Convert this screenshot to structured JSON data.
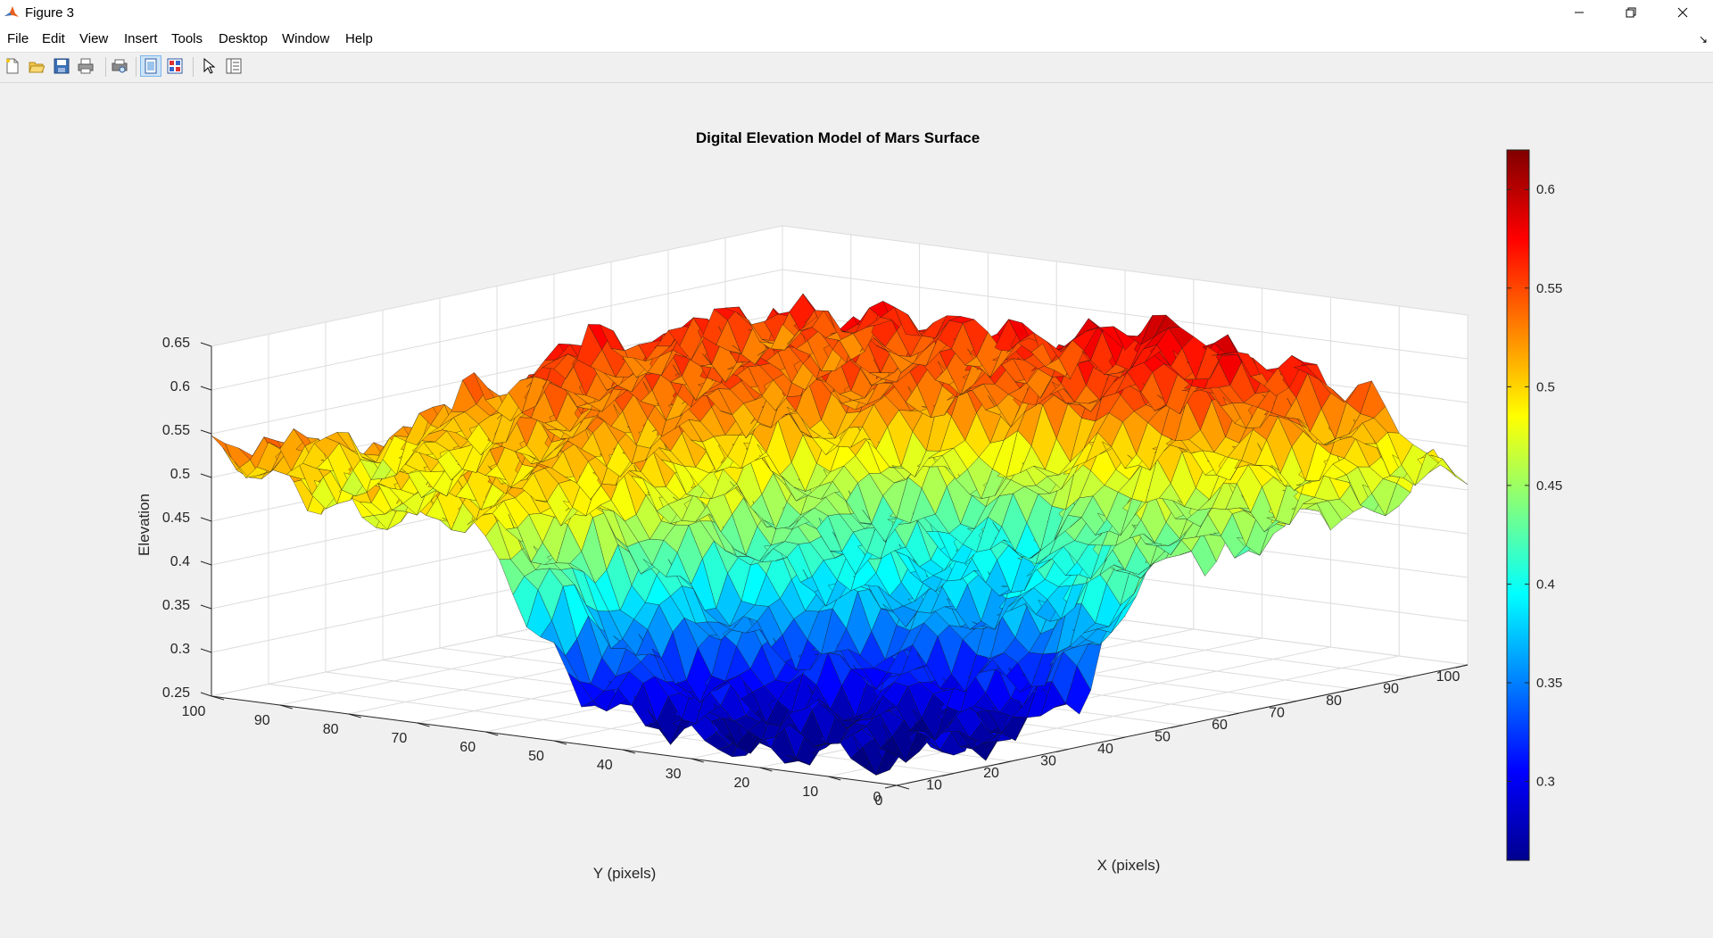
{
  "window": {
    "title": "Figure 3"
  },
  "menu": [
    "File",
    "Edit",
    "View",
    "Insert",
    "Tools",
    "Desktop",
    "Window",
    "Help"
  ],
  "toolbar": {
    "icons": [
      "new-figure-icon",
      "open-file-icon",
      "save-icon",
      "print-icon",
      "print-preview-icon",
      "dock-figure-icon",
      "subplot-layout-icon",
      "edit-plot-pointer-icon",
      "property-inspector-icon"
    ]
  },
  "colors": {
    "axes_background": "#ffffff",
    "figure_background": "#f0f0f0",
    "colormap": "jet"
  },
  "chart_data": {
    "type": "surface",
    "title": "Digital Elevation Model of Mars Surface",
    "xlabel": "X (pixels)",
    "ylabel": "Y (pixels)",
    "zlabel": "Elevation",
    "xlim": [
      0,
      100
    ],
    "ylim": [
      0,
      100
    ],
    "zlim": [
      0.25,
      0.65
    ],
    "x_ticks": [
      0,
      10,
      20,
      30,
      40,
      50,
      60,
      70,
      80,
      90,
      100
    ],
    "y_ticks": [
      0,
      10,
      20,
      30,
      40,
      50,
      60,
      70,
      80,
      90,
      100
    ],
    "z_ticks": [
      0.25,
      0.3,
      0.35,
      0.4,
      0.45,
      0.5,
      0.55,
      0.6,
      0.65
    ],
    "x_tick_labels": [
      "0",
      "10",
      "20",
      "30",
      "40",
      "50",
      "60",
      "70",
      "80",
      "90",
      "100"
    ],
    "y_tick_labels": [
      "0",
      "10",
      "20",
      "30",
      "40",
      "50",
      "60",
      "70",
      "80",
      "90",
      "100"
    ],
    "z_tick_labels": [
      "0.25",
      "0.3",
      "0.35",
      "0.4",
      "0.45",
      "0.5",
      "0.55",
      "0.6",
      "0.65"
    ],
    "grid": true,
    "colorbar": {
      "limits": [
        0.26,
        0.62
      ],
      "ticks": [
        0.3,
        0.35,
        0.4,
        0.45,
        0.5,
        0.55,
        0.6
      ],
      "tick_labels": [
        "0.3",
        "0.35",
        "0.4",
        "0.45",
        "0.5",
        "0.55",
        "0.6"
      ],
      "placement": "right"
    },
    "surface_features": [
      {
        "x": 0,
        "y": 100,
        "elevation": 0.58
      },
      {
        "x": 10,
        "y": 90,
        "elevation": 0.45
      },
      {
        "x": 20,
        "y": 75,
        "elevation": 0.5
      },
      {
        "x": 30,
        "y": 70,
        "elevation": 0.54
      },
      {
        "x": 45,
        "y": 50,
        "elevation": 0.5
      },
      {
        "x": 50,
        "y": 45,
        "elevation": 0.33
      },
      {
        "x": 20,
        "y": 35,
        "elevation": 0.28
      },
      {
        "x": 85,
        "y": 60,
        "elevation": 0.55
      },
      {
        "x": 60,
        "y": 70,
        "elevation": 0.55
      },
      {
        "x": 100,
        "y": 30,
        "elevation": 0.6
      },
      {
        "x": 95,
        "y": 20,
        "elevation": 0.55
      },
      {
        "x": 75,
        "y": 10,
        "elevation": 0.45
      },
      {
        "x": 100,
        "y": 0,
        "elevation": 0.44
      }
    ]
  }
}
